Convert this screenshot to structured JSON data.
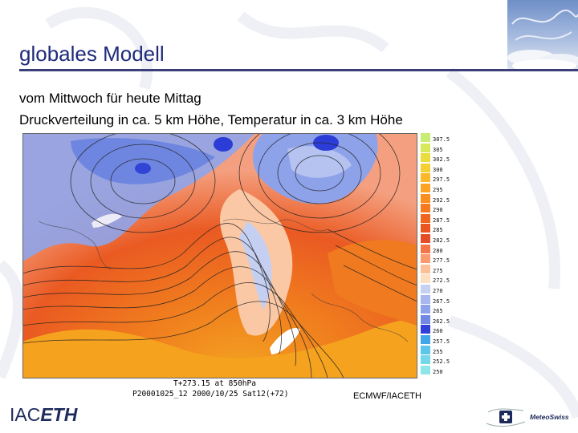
{
  "slide": {
    "title": "globales Modell",
    "subtitle_line1": "vom Mittwoch für heute Mittag",
    "subtitle_line2": "Druckverteilung in ca. 5 km Höhe, Temperatur in ca. 3 km Höhe"
  },
  "map": {
    "caption_line1": "T+273.15 at 850hPa",
    "caption_line2": "P20001025_12 2000/10/25 Sat12(+72)",
    "source": "ECMWF/IACETH"
  },
  "legend": {
    "items": [
      {
        "label": "307.5",
        "color": "#c8ec74"
      },
      {
        "label": "305",
        "color": "#d7e85a"
      },
      {
        "label": "302.5",
        "color": "#e8dd3c"
      },
      {
        "label": "300",
        "color": "#f6cf32"
      },
      {
        "label": "297.5",
        "color": "#fbb829"
      },
      {
        "label": "295",
        "color": "#fca321"
      },
      {
        "label": "292.5",
        "color": "#fb8e1f"
      },
      {
        "label": "290",
        "color": "#f8791e"
      },
      {
        "label": "287.5",
        "color": "#f2651e"
      },
      {
        "label": "285",
        "color": "#ea5520"
      },
      {
        "label": "282.5",
        "color": "#e44d26"
      },
      {
        "label": "280",
        "color": "#f47548"
      },
      {
        "label": "277.5",
        "color": "#fb9a6e"
      },
      {
        "label": "275",
        "color": "#fdbf96"
      },
      {
        "label": "272.5",
        "color": "#fde0c0"
      },
      {
        "label": "270",
        "color": "#c5d0f2"
      },
      {
        "label": "267.5",
        "color": "#a8b8ee"
      },
      {
        "label": "265",
        "color": "#8ea2ea"
      },
      {
        "label": "262.5",
        "color": "#7288e3"
      },
      {
        "label": "260",
        "color": "#3040d8"
      },
      {
        "label": "257.5",
        "color": "#40a8e8"
      },
      {
        "label": "255",
        "color": "#5cc6ea"
      },
      {
        "label": "252.5",
        "color": "#74d8ea"
      },
      {
        "label": "250",
        "color": "#8ee6ea"
      }
    ]
  },
  "footer": {
    "brand_left_plain": "IAC",
    "brand_left_bold": "ETH",
    "brand_right": "MeteoSwiss"
  }
}
